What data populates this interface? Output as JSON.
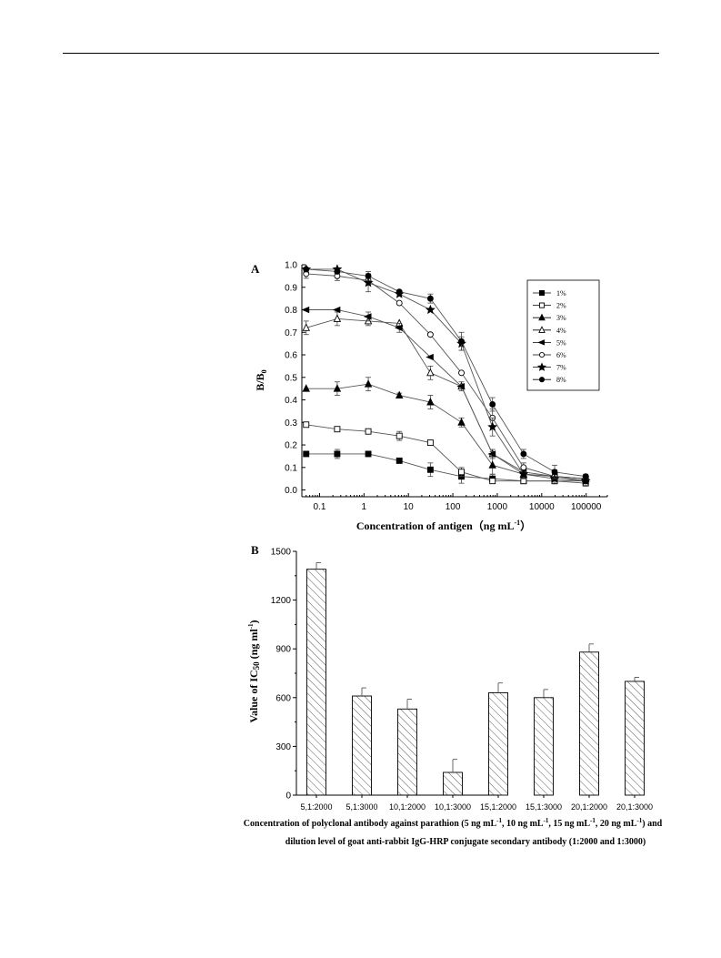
{
  "chart_data": [
    {
      "panel": "A",
      "type": "line",
      "ylabel": "B/B",
      "ylabel_subscript": "0",
      "xlabel": "Concentration of antigen（ng mL",
      "xlabel_superscript": "-1",
      "xlabel_close": "）",
      "xscale": "log",
      "xlim": [
        0.04,
        300000
      ],
      "ylim": [
        -0.03,
        1.0
      ],
      "xticks": [
        0.1,
        1,
        10,
        100,
        1000,
        10000,
        100000
      ],
      "xtick_labels": [
        "0.1",
        "1",
        "10",
        "100",
        "1000",
        "10000",
        "100000"
      ],
      "yticks": [
        0.0,
        0.1,
        0.2,
        0.3,
        0.4,
        0.5,
        0.6,
        0.7,
        0.8,
        0.9,
        1.0
      ],
      "ytick_labels": [
        "0.0",
        "0.1",
        "0.2",
        "0.3",
        "0.4",
        "0.5",
        "0.6",
        "0.7",
        "0.8",
        "0.9",
        "1.0"
      ],
      "legend_position": "top-right",
      "x": [
        0.05,
        0.25,
        1.25,
        6.25,
        31.25,
        156.25,
        781.25,
        3906.25,
        19531.25,
        97656.25
      ],
      "series": [
        {
          "name": "1%",
          "marker": "filled-square",
          "values": [
            0.16,
            0.16,
            0.16,
            0.13,
            0.09,
            0.06,
            0.05,
            0.04,
            0.04,
            0.04
          ],
          "errors": [
            0,
            0.02,
            0,
            0.01,
            0.03,
            0.03,
            0.02,
            0.01,
            0.01,
            0.01
          ]
        },
        {
          "name": "2%",
          "marker": "open-square",
          "values": [
            0.29,
            0.27,
            0.26,
            0.24,
            0.21,
            0.08,
            0.04,
            0.04,
            0.04,
            0.03
          ],
          "errors": [
            0,
            0.01,
            0.01,
            0.02,
            0,
            0.02,
            0.01,
            0.01,
            0.01,
            0.01
          ]
        },
        {
          "name": "3%",
          "marker": "filled-triangle",
          "values": [
            0.45,
            0.45,
            0.47,
            0.42,
            0.39,
            0.3,
            0.11,
            0.07,
            0.06,
            0.05
          ],
          "errors": [
            0,
            0.03,
            0.03,
            0.01,
            0.03,
            0.02,
            0.04,
            0.02,
            0.02,
            0.01
          ]
        },
        {
          "name": "4%",
          "marker": "open-triangle",
          "values": [
            0.72,
            0.76,
            0.75,
            0.74,
            0.52,
            0.46,
            0.16,
            0.07,
            0.06,
            0.05
          ],
          "errors": [
            0.03,
            0.03,
            0.02,
            0,
            0.03,
            0.02,
            0.02,
            0.02,
            0.02,
            0.01
          ]
        },
        {
          "name": "5%",
          "marker": "filled-left-triangle",
          "values": [
            0.8,
            0.8,
            0.77,
            0.72,
            0.59,
            0.46,
            0.16,
            0.08,
            0.06,
            0.05
          ],
          "errors": [
            0,
            0,
            0.02,
            0.02,
            0,
            0,
            0.01,
            0.02,
            0.01,
            0.01
          ]
        },
        {
          "name": "6%",
          "marker": "open-circle",
          "values": [
            0.96,
            0.95,
            0.93,
            0.83,
            0.69,
            0.52,
            0.32,
            0.1,
            0.06,
            0.04
          ],
          "errors": [
            0.02,
            0.02,
            0.02,
            0,
            0,
            0,
            0.04,
            0.02,
            0.03,
            0.02
          ]
        },
        {
          "name": "7%",
          "marker": "filled-star",
          "values": [
            0.98,
            0.98,
            0.92,
            0.87,
            0.8,
            0.65,
            0.28,
            0.07,
            0.05,
            0.04
          ],
          "errors": [
            0,
            0,
            0.04,
            0,
            0,
            0.03,
            0.04,
            0.01,
            0.01,
            0.01
          ]
        },
        {
          "name": "8%",
          "marker": "filled-circle",
          "values": [
            0.98,
            0.97,
            0.95,
            0.88,
            0.85,
            0.66,
            0.38,
            0.16,
            0.08,
            0.06
          ],
          "errors": [
            0,
            0.01,
            0.02,
            0,
            0.02,
            0.04,
            0.03,
            0.02,
            0.03,
            0.01
          ]
        }
      ]
    },
    {
      "panel": "B",
      "type": "bar",
      "pattern": "diagonal-hatch",
      "ylabel": "Value of IC",
      "ylabel_subscript": "50",
      "ylabel_unit": " (ng ml",
      "ylabel_unit_superscript": "-1",
      "ylabel_unit_close": ")",
      "ylim": [
        0,
        1500
      ],
      "yticks": [
        0,
        300,
        600,
        900,
        1200,
        1500
      ],
      "ytick_labels": [
        "0",
        "300",
        "600",
        "900",
        "1200",
        "1500"
      ],
      "categories": [
        "5,1:2000",
        "5,1:3000",
        "10,1:2000",
        "10,1:3000",
        "15,1:2000",
        "15,1:3000",
        "20,1:2000",
        "20,1:3000"
      ],
      "values": [
        1390,
        610,
        530,
        140,
        630,
        600,
        880,
        700
      ],
      "errors": [
        40,
        50,
        60,
        80,
        60,
        50,
        50,
        25
      ],
      "caption_line1_parts": [
        "Concentration of polyclonal antibody against parathion (5 ng mL",
        "-1",
        ", 10 ng mL",
        "-1",
        ", 15 ng mL",
        "-1",
        ", 20 ng mL",
        "-1",
        ") and"
      ],
      "caption_line2": "dilution level of goat anti-rabbit IgG-HRP conjugate secondary antibody (1:2000 and 1:3000)"
    }
  ]
}
